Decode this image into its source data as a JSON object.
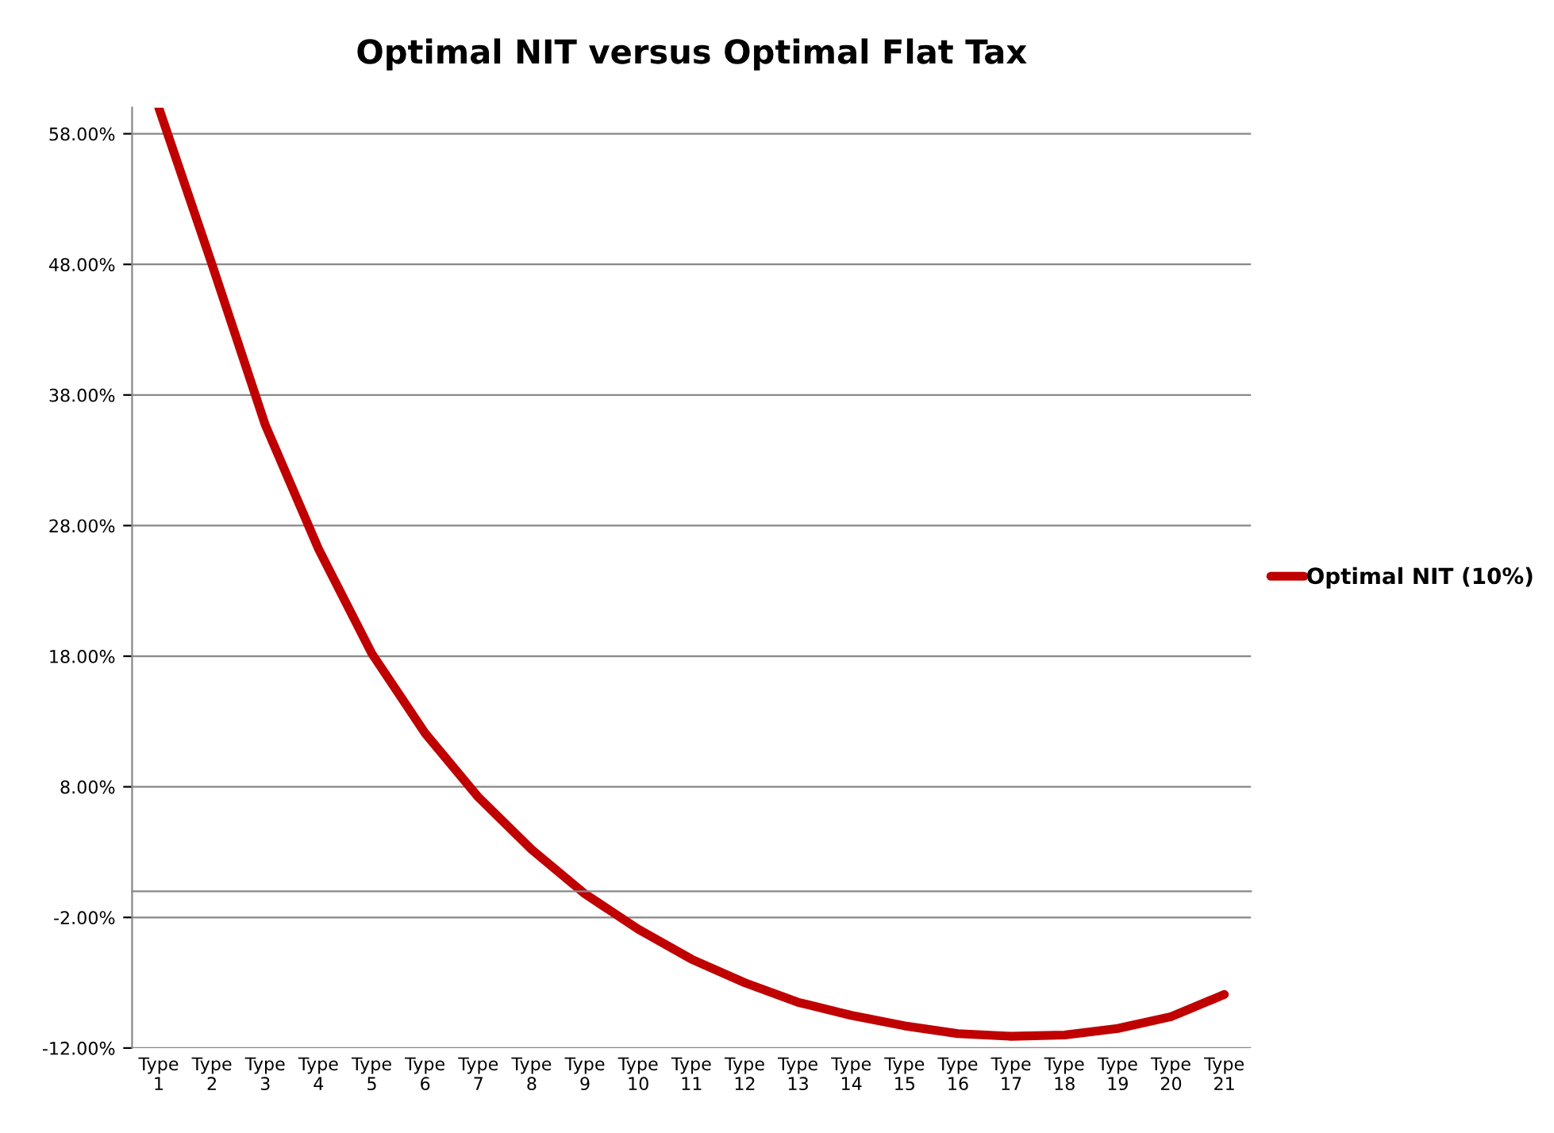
{
  "chart_data": {
    "type": "line",
    "title": "Optimal NIT versus Optimal Flat Tax",
    "categories": [
      "Type 1",
      "Type 2",
      "Type 3",
      "Type 4",
      "Type 5",
      "Type 6",
      "Type 7",
      "Type 8",
      "Type 9",
      "Type 10",
      "Type 11",
      "Type 12",
      "Type 13",
      "Type 14",
      "Type 15",
      "Type 16",
      "Type 17",
      "Type 18",
      "Type 19",
      "Type 20",
      "Type 21"
    ],
    "series": [
      {
        "name": "Optimal NIT (10%)",
        "color": "#c00000",
        "values": [
          60,
          48,
          35.7,
          26.2,
          18.2,
          12.1,
          7.2,
          3.2,
          -0.2,
          -2.9,
          -5.2,
          -7,
          -8.5,
          -9.5,
          -10.3,
          -10.9,
          -11.1,
          -11,
          -10.5,
          -9.6,
          -7.9
        ]
      }
    ],
    "ylim": [
      -12,
      60
    ],
    "yticks": [
      {
        "value": -12,
        "label": "-12.00%"
      },
      {
        "value": -2,
        "label": "-2.00%"
      },
      {
        "value": 8,
        "label": "8.00%"
      },
      {
        "value": 18,
        "label": "18.00%"
      },
      {
        "value": 28,
        "label": "28.00%"
      },
      {
        "value": 38,
        "label": "38.00%"
      },
      {
        "value": 48,
        "label": "48.00%"
      },
      {
        "value": 58,
        "label": "58.00%"
      }
    ],
    "grid": "y",
    "legend": "right",
    "marker": "none",
    "line_style": "solid"
  }
}
